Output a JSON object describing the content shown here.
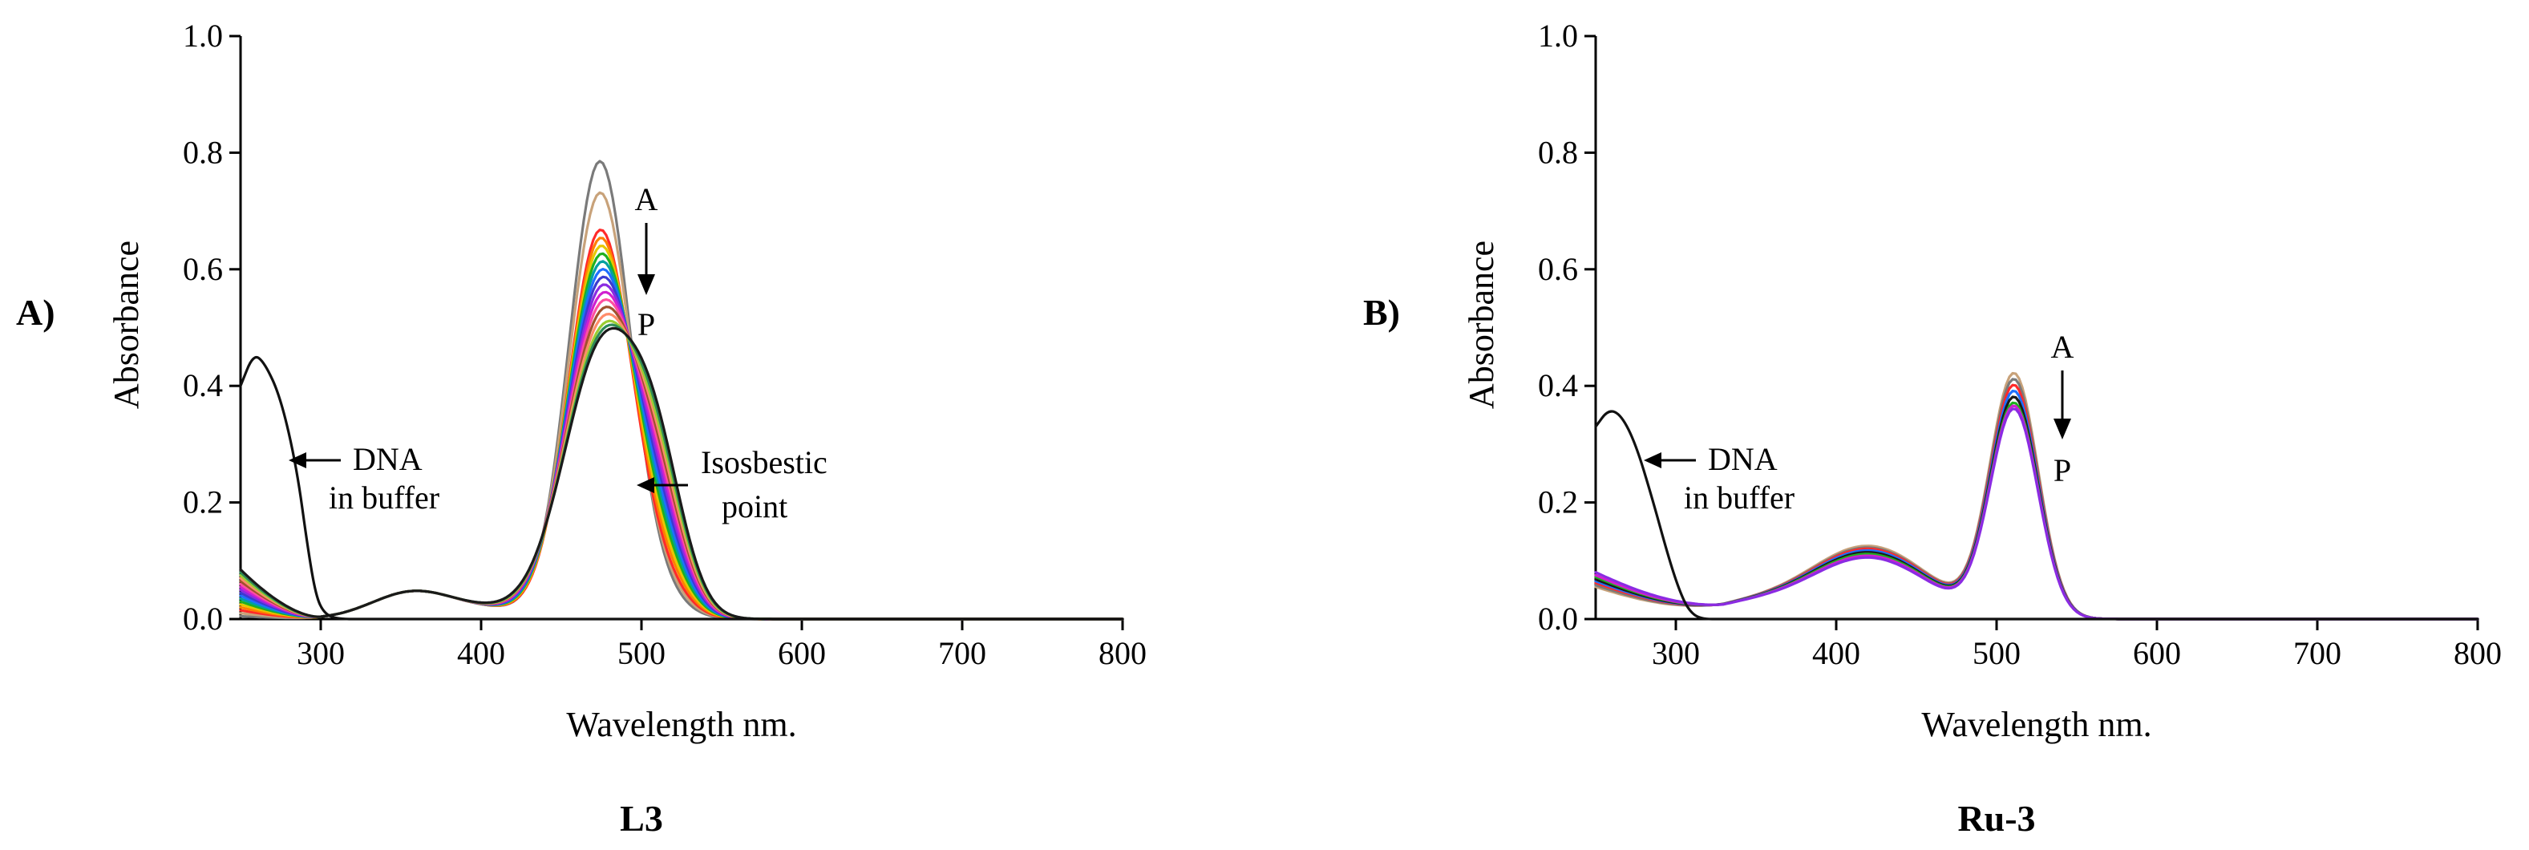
{
  "chart_data": [
    {
      "type": "line",
      "panel_label": "A)",
      "title": "L3",
      "xlabel": "Wavelength nm.",
      "ylabel": "Absorbance",
      "xlim": [
        250,
        800
      ],
      "ylim": [
        0,
        1.0
      ],
      "xticks": [
        "300",
        "400",
        "500",
        "600",
        "700",
        "800"
      ],
      "yticks": [
        "0.0",
        "0.2",
        "0.4",
        "0.6",
        "0.8",
        "1.0"
      ],
      "grid": false,
      "annotations": {
        "top": "A",
        "bottom": "P",
        "dna_line1": "DNA",
        "dna_line2": "in buffer",
        "iso_line1": "Isosbestic",
        "iso_line2": "point"
      },
      "dna": {
        "color": "#111111",
        "x": [
          250,
          258,
          265,
          275,
          285,
          292,
          297,
          302,
          310,
          330,
          360,
          400,
          500,
          800
        ],
        "y": [
          0.4,
          0.455,
          0.44,
          0.38,
          0.26,
          0.12,
          0.04,
          0.01,
          0.0,
          0.0,
          0.0,
          0.0,
          0.0,
          0.0
        ]
      },
      "titration": {
        "peak_x": 474,
        "uv_start_x": 250,
        "uv_end_x": 300,
        "peaks": [
          0.78,
          0.725,
          0.66,
          0.645,
          0.63,
          0.615,
          0.6,
          0.585,
          0.57,
          0.555,
          0.54,
          0.525,
          0.51,
          0.495,
          0.48,
          0.47,
          0.46
        ],
        "uv": [
          0.005,
          0.01,
          0.015,
          0.02,
          0.025,
          0.03,
          0.035,
          0.04,
          0.045,
          0.05,
          0.055,
          0.06,
          0.065,
          0.07,
          0.075,
          0.08,
          0.085
        ],
        "colors": [
          "#7a7a7a",
          "#c8a27a",
          "#ff2a2a",
          "#ff7f00",
          "#e6c800",
          "#1fb01f",
          "#00a0a0",
          "#1e6fff",
          "#3b3bd0",
          "#8a2be2",
          "#d020d0",
          "#ff4fa0",
          "#a0522d",
          "#ff8c69",
          "#9acd32",
          "#2e8b57",
          "#1a1a1a"
        ]
      }
    },
    {
      "type": "line",
      "panel_label": "B)",
      "title": "Ru-3",
      "xlabel": "Wavelength nm.",
      "ylabel": "Absorbance",
      "xlim": [
        250,
        800
      ],
      "ylim": [
        0,
        1.0
      ],
      "xticks": [
        "300",
        "400",
        "500",
        "600",
        "700",
        "800"
      ],
      "yticks": [
        "0.0",
        "0.2",
        "0.4",
        "0.6",
        "0.8",
        "1.0"
      ],
      "grid": false,
      "annotations": {
        "top": "A",
        "bottom": "P",
        "dna_line1": "DNA",
        "dna_line2": "in buffer"
      },
      "dna": {
        "color": "#111111",
        "x": [
          250,
          258,
          266,
          275,
          285,
          295,
          302,
          308,
          315,
          330,
          360,
          400,
          500,
          800
        ],
        "y": [
          0.33,
          0.36,
          0.35,
          0.3,
          0.21,
          0.11,
          0.05,
          0.015,
          0.0,
          0.0,
          0.0,
          0.0,
          0.0,
          0.0
        ]
      },
      "titration": {
        "peak_x": 511,
        "shoulder_x": 420,
        "uv_start_x": 250,
        "uv_end_x": 330,
        "peaks": [
          0.415,
          0.405,
          0.395,
          0.385,
          0.375,
          0.365,
          0.36,
          0.355
        ],
        "shoulders": [
          0.125,
          0.122,
          0.12,
          0.117,
          0.114,
          0.111,
          0.108,
          0.105
        ],
        "uv": [
          0.055,
          0.058,
          0.062,
          0.065,
          0.068,
          0.072,
          0.075,
          0.08
        ],
        "colors": [
          "#c8a27a",
          "#7a7a7a",
          "#ff2a2a",
          "#1e6fff",
          "#1a1a1a",
          "#1fb01f",
          "#d020d0",
          "#8a2be2"
        ]
      }
    }
  ]
}
